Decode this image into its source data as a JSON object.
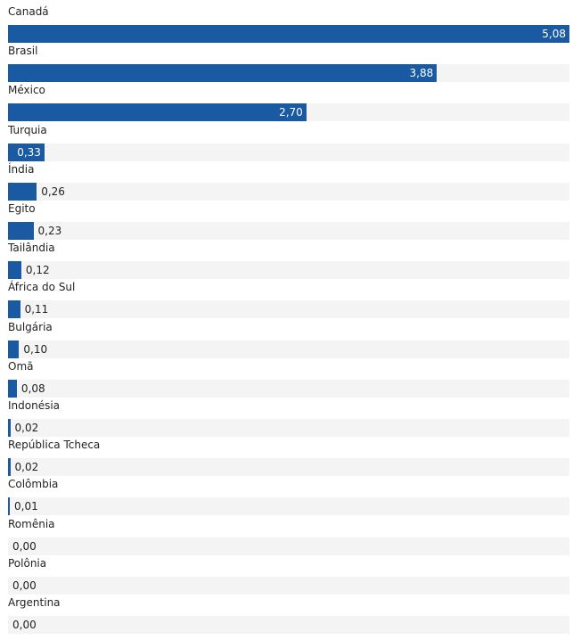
{
  "chart_data": {
    "type": "bar",
    "orientation": "horizontal",
    "categories": [
      "Canadá",
      "Brasil",
      "México",
      "Turquia",
      "Índia",
      "Egito",
      "Tailândia",
      "África do Sul",
      "Bulgária",
      "Omã",
      "Indonésia",
      "República Tcheca",
      "Colômbia",
      "Romênia",
      "Polônia",
      "Argentina"
    ],
    "values": [
      5.08,
      3.88,
      2.7,
      0.33,
      0.26,
      0.23,
      0.12,
      0.11,
      0.1,
      0.08,
      0.02,
      0.02,
      0.01,
      0.0,
      0.0,
      0.0
    ],
    "value_labels": [
      "5,08",
      "3,88",
      "2,70",
      "0,33",
      "0,26",
      "0,23",
      "0,12",
      "0,11",
      "0,10",
      "0,08",
      "0,02",
      "0,02",
      "0,01",
      "0,00",
      "0,00",
      "0,00"
    ],
    "xlim": [
      0,
      5.08
    ],
    "bar_color": "#1a5aa3",
    "track_color": "#f4f4f4"
  }
}
